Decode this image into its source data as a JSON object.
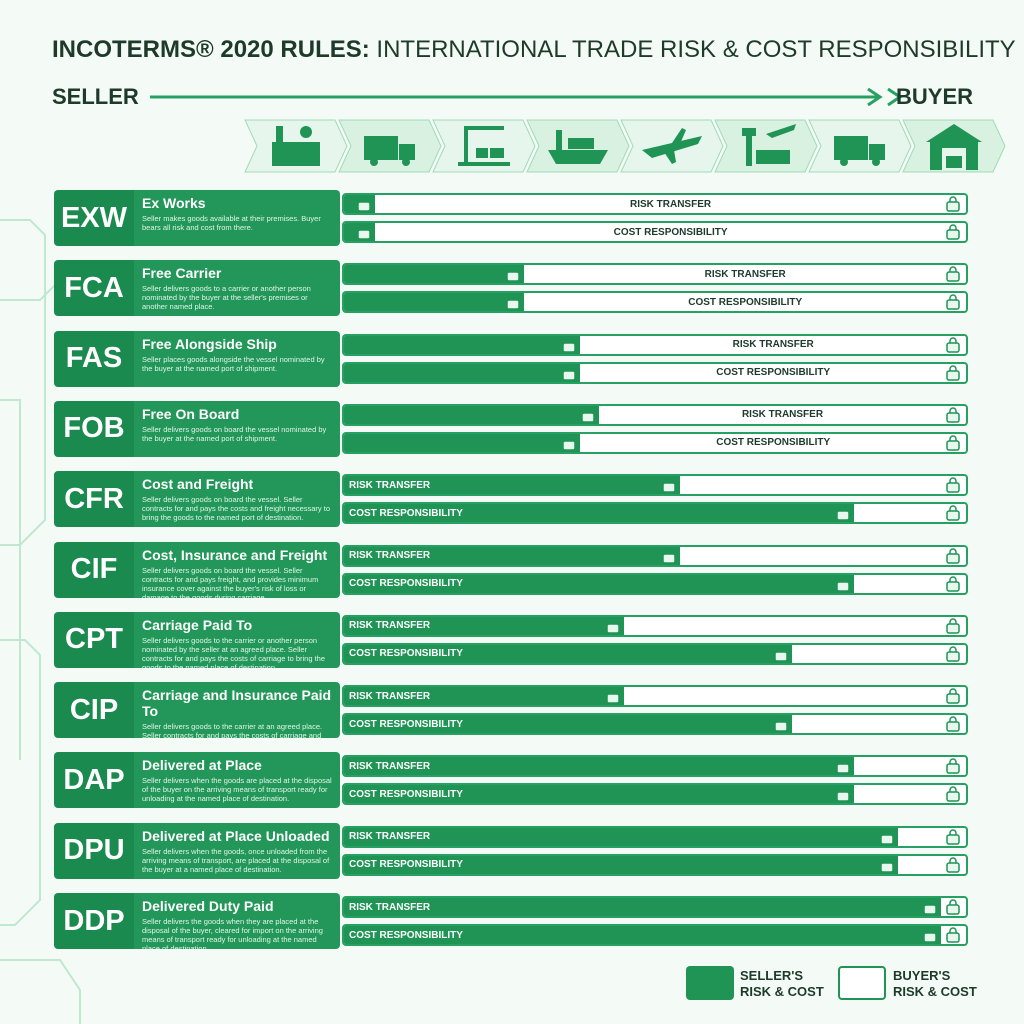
{
  "header": {
    "title_bold": "INCOTERMS® 2020 RULES:",
    "title_rest": "INTERNATIONAL TRADE RISK & COST RESPONSIBILITY",
    "seller": "SELLER",
    "buyer": "BUYER"
  },
  "labels": {
    "risk": "RISK TRANSFER",
    "cost": "COST RESPONSIBILITY"
  },
  "rows": [
    {
      "code": "EXW",
      "name": "Ex Works",
      "description": "Seller makes goods available at their premises. Buyer bears all risk and cost from there.",
      "risk": 5,
      "cost": 5
    },
    {
      "code": "FCA",
      "name": "Free Carrier",
      "description": "Seller delivers goods to a carrier or another person nominated by the buyer at the seller's premises or another named place.",
      "risk": 29,
      "cost": 29
    },
    {
      "code": "FAS",
      "name": "Free Alongside Ship",
      "description": "Seller places goods alongside the vessel nominated by the buyer at the named port of shipment.",
      "risk": 38,
      "cost": 38
    },
    {
      "code": "FOB",
      "name": "Free On Board",
      "description": "Seller delivers goods on board the vessel nominated by the buyer at the named port of shipment.",
      "risk": 41,
      "cost": 38
    },
    {
      "code": "CFR",
      "name": "Cost and Freight",
      "description": "Seller delivers goods on board the vessel. Seller contracts for and pays the costs and freight necessary to bring the goods to the named port of destination.",
      "risk": 54,
      "cost": 82
    },
    {
      "code": "CIF",
      "name": "Cost, Insurance and Freight",
      "description": "Seller delivers goods on board the vessel. Seller contracts for and pays freight, and provides minimum insurance cover against the buyer's risk of loss or damage to the goods during carriage.",
      "risk": 54,
      "cost": 82
    },
    {
      "code": "CPT",
      "name": "Carriage Paid To",
      "description": "Seller delivers goods to the carrier or another person nominated by the seller at an agreed place. Seller contracts for and pays the costs of carriage to bring the goods to the named place of destination.",
      "risk": 45,
      "cost": 72
    },
    {
      "code": "CIP",
      "name": "Carriage and Insurance Paid To",
      "description": "Seller delivers goods to the carrier at an agreed place. Seller contracts for and pays the costs of carriage and insurance cover against the buyer's risk of loss or damage to the goods during carriage.",
      "risk": 45,
      "cost": 72
    },
    {
      "code": "DAP",
      "name": "Delivered at Place",
      "description": "Seller delivers when the goods are placed at the disposal of the buyer on the arriving means of transport ready for unloading at the named place of destination.",
      "risk": 82,
      "cost": 82
    },
    {
      "code": "DPU",
      "name": "Delivered at Place Unloaded",
      "description": "Seller delivers when the goods, once unloaded from the arriving means of transport, are placed at the disposal of the buyer at a named place of destination.",
      "risk": 89,
      "cost": 89
    },
    {
      "code": "DDP",
      "name": "Delivered Duty Paid",
      "description": "Seller delivers the goods when they are placed at the disposal of the buyer, cleared for import on the arriving means of transport ready for unloading at the named place of destination.",
      "risk": 96,
      "cost": 96
    }
  ],
  "legend": {
    "seller": [
      "SELLER'S",
      "RISK & COST"
    ],
    "buyer": [
      "BUYER'S",
      "RISK & COST"
    ]
  }
}
